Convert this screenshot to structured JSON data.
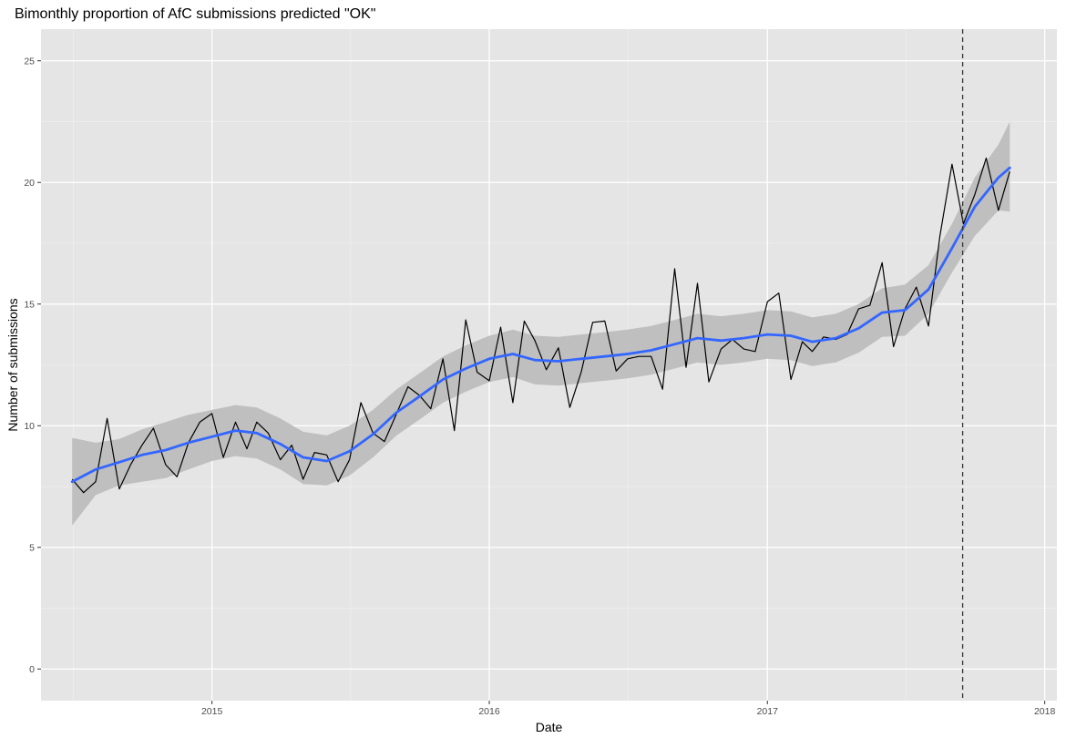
{
  "chart_data": {
    "type": "line",
    "title": "Bimonthly proportion of AfC submissions predicted \"OK\"",
    "xlabel": "Date",
    "ylabel": "Number of submissions",
    "xlim": [
      "2014-05-21",
      "2018-01-17"
    ],
    "ylim": [
      -1.3,
      26.3
    ],
    "x_ticks": [
      {
        "label": "2015",
        "value": "2015-01-01"
      },
      {
        "label": "2016",
        "value": "2016-01-01"
      },
      {
        "label": "2017",
        "value": "2017-01-01"
      },
      {
        "label": "2018",
        "value": "2018-01-01"
      }
    ],
    "y_ticks": [
      {
        "label": "0",
        "value": 0
      },
      {
        "label": "5",
        "value": 5
      },
      {
        "label": "10",
        "value": 10
      },
      {
        "label": "15",
        "value": 15
      },
      {
        "label": "20",
        "value": 20
      },
      {
        "label": "25",
        "value": 25
      }
    ],
    "grid": true,
    "background": "#e5e5e5",
    "colors": {
      "raw": "#000000",
      "smooth": "#3366ff",
      "ribbon": "#bdbdbd",
      "vline": "#333333"
    },
    "vline": {
      "x": "2017-09-15",
      "style": "dashed"
    },
    "series": [
      {
        "role": "raw",
        "points": [
          [
            "2014-07-01",
            7.8
          ],
          [
            "2014-07-16",
            7.25
          ],
          [
            "2014-08-01",
            7.7
          ],
          [
            "2014-08-16",
            10.3
          ],
          [
            "2014-09-01",
            7.4
          ],
          [
            "2014-09-16",
            8.4
          ],
          [
            "2014-10-01",
            9.2
          ],
          [
            "2014-10-16",
            9.9
          ],
          [
            "2014-11-01",
            8.4
          ],
          [
            "2014-11-16",
            7.9
          ],
          [
            "2014-12-01",
            9.3
          ],
          [
            "2014-12-16",
            10.15
          ],
          [
            "2015-01-01",
            10.5
          ],
          [
            "2015-01-16",
            8.7
          ],
          [
            "2015-02-01",
            10.15
          ],
          [
            "2015-02-16",
            9.05
          ],
          [
            "2015-03-01",
            10.15
          ],
          [
            "2015-03-16",
            9.7
          ],
          [
            "2015-04-01",
            8.6
          ],
          [
            "2015-04-16",
            9.2
          ],
          [
            "2015-05-01",
            7.8
          ],
          [
            "2015-05-16",
            8.9
          ],
          [
            "2015-06-01",
            8.8
          ],
          [
            "2015-06-16",
            7.7
          ],
          [
            "2015-07-01",
            8.6
          ],
          [
            "2015-07-16",
            10.95
          ],
          [
            "2015-08-01",
            9.7
          ],
          [
            "2015-08-16",
            9.35
          ],
          [
            "2015-09-01",
            10.5
          ],
          [
            "2015-09-16",
            11.6
          ],
          [
            "2015-10-01",
            11.25
          ],
          [
            "2015-10-16",
            10.7
          ],
          [
            "2015-11-01",
            12.75
          ],
          [
            "2015-11-16",
            9.8
          ],
          [
            "2015-12-01",
            14.35
          ],
          [
            "2015-12-16",
            12.2
          ],
          [
            "2016-01-01",
            11.85
          ],
          [
            "2016-01-16",
            14.05
          ],
          [
            "2016-02-01",
            10.95
          ],
          [
            "2016-02-16",
            14.3
          ],
          [
            "2016-03-01",
            13.5
          ],
          [
            "2016-03-16",
            12.3
          ],
          [
            "2016-04-01",
            13.2
          ],
          [
            "2016-04-16",
            10.75
          ],
          [
            "2016-05-01",
            12.2
          ],
          [
            "2016-05-16",
            14.25
          ],
          [
            "2016-06-01",
            14.3
          ],
          [
            "2016-06-16",
            12.25
          ],
          [
            "2016-07-01",
            12.75
          ],
          [
            "2016-07-16",
            12.85
          ],
          [
            "2016-08-01",
            12.85
          ],
          [
            "2016-08-16",
            11.5
          ],
          [
            "2016-09-01",
            16.45
          ],
          [
            "2016-09-16",
            12.4
          ],
          [
            "2016-10-01",
            15.85
          ],
          [
            "2016-10-16",
            11.8
          ],
          [
            "2016-11-01",
            13.15
          ],
          [
            "2016-11-16",
            13.55
          ],
          [
            "2016-12-01",
            13.15
          ],
          [
            "2016-12-16",
            13.05
          ],
          [
            "2017-01-01",
            15.1
          ],
          [
            "2017-01-16",
            15.45
          ],
          [
            "2017-02-01",
            11.9
          ],
          [
            "2017-02-16",
            13.45
          ],
          [
            "2017-03-01",
            13.05
          ],
          [
            "2017-03-16",
            13.65
          ],
          [
            "2017-04-01",
            13.55
          ],
          [
            "2017-04-16",
            13.75
          ],
          [
            "2017-05-01",
            14.8
          ],
          [
            "2017-05-16",
            14.95
          ],
          [
            "2017-06-01",
            16.7
          ],
          [
            "2017-06-16",
            13.25
          ],
          [
            "2017-07-01",
            14.8
          ],
          [
            "2017-07-16",
            15.7
          ],
          [
            "2017-08-01",
            14.1
          ],
          [
            "2017-08-16",
            17.8
          ],
          [
            "2017-09-01",
            20.75
          ],
          [
            "2017-09-16",
            18.3
          ],
          [
            "2017-10-01",
            19.5
          ],
          [
            "2017-10-16",
            21.0
          ],
          [
            "2017-11-01",
            18.85
          ],
          [
            "2017-11-16",
            20.45
          ]
        ]
      },
      {
        "role": "smooth",
        "points": [
          [
            "2014-07-01",
            7.7
          ],
          [
            "2014-08-01",
            8.2
          ],
          [
            "2014-09-01",
            8.5
          ],
          [
            "2014-10-01",
            8.8
          ],
          [
            "2014-11-01",
            9.0
          ],
          [
            "2014-12-01",
            9.3
          ],
          [
            "2015-01-01",
            9.55
          ],
          [
            "2015-02-01",
            9.8
          ],
          [
            "2015-03-01",
            9.7
          ],
          [
            "2015-04-01",
            9.25
          ],
          [
            "2015-05-01",
            8.7
          ],
          [
            "2015-06-01",
            8.55
          ],
          [
            "2015-07-01",
            8.95
          ],
          [
            "2015-08-01",
            9.65
          ],
          [
            "2015-09-01",
            10.55
          ],
          [
            "2015-10-01",
            11.2
          ],
          [
            "2015-11-01",
            11.9
          ],
          [
            "2015-12-01",
            12.35
          ],
          [
            "2016-01-01",
            12.75
          ],
          [
            "2016-02-01",
            12.95
          ],
          [
            "2016-03-01",
            12.7
          ],
          [
            "2016-04-01",
            12.65
          ],
          [
            "2016-05-01",
            12.75
          ],
          [
            "2016-06-01",
            12.85
          ],
          [
            "2016-07-01",
            12.95
          ],
          [
            "2016-08-01",
            13.1
          ],
          [
            "2016-09-01",
            13.35
          ],
          [
            "2016-10-01",
            13.6
          ],
          [
            "2016-11-01",
            13.5
          ],
          [
            "2016-12-01",
            13.6
          ],
          [
            "2017-01-01",
            13.75
          ],
          [
            "2017-02-01",
            13.7
          ],
          [
            "2017-03-01",
            13.45
          ],
          [
            "2017-04-01",
            13.6
          ],
          [
            "2017-05-01",
            14.0
          ],
          [
            "2017-06-01",
            14.65
          ],
          [
            "2017-07-01",
            14.75
          ],
          [
            "2017-08-01",
            15.6
          ],
          [
            "2017-09-01",
            17.3
          ],
          [
            "2017-10-01",
            19.0
          ],
          [
            "2017-11-01",
            20.2
          ],
          [
            "2017-11-16",
            20.6
          ]
        ]
      },
      {
        "role": "ribbon",
        "points": [
          [
            "2014-07-01",
            5.9,
            9.5
          ],
          [
            "2014-08-01",
            7.15,
            9.3
          ],
          [
            "2014-09-01",
            7.55,
            9.45
          ],
          [
            "2014-10-01",
            7.7,
            9.85
          ],
          [
            "2014-11-01",
            7.85,
            10.15
          ],
          [
            "2014-12-01",
            8.2,
            10.45
          ],
          [
            "2015-01-01",
            8.55,
            10.65
          ],
          [
            "2015-02-01",
            8.75,
            10.85
          ],
          [
            "2015-03-01",
            8.65,
            10.75
          ],
          [
            "2015-04-01",
            8.2,
            10.3
          ],
          [
            "2015-05-01",
            7.6,
            9.75
          ],
          [
            "2015-06-01",
            7.55,
            9.6
          ],
          [
            "2015-07-01",
            7.95,
            10.0
          ],
          [
            "2015-08-01",
            8.7,
            10.65
          ],
          [
            "2015-09-01",
            9.6,
            11.5
          ],
          [
            "2015-10-01",
            10.25,
            12.15
          ],
          [
            "2015-11-01",
            10.95,
            12.85
          ],
          [
            "2015-12-01",
            11.4,
            13.3
          ],
          [
            "2016-01-01",
            11.8,
            13.7
          ],
          [
            "2016-02-01",
            12.0,
            13.95
          ],
          [
            "2016-03-01",
            11.7,
            13.7
          ],
          [
            "2016-04-01",
            11.65,
            13.65
          ],
          [
            "2016-05-01",
            11.75,
            13.75
          ],
          [
            "2016-06-01",
            11.85,
            13.85
          ],
          [
            "2016-07-01",
            11.95,
            13.95
          ],
          [
            "2016-08-01",
            12.1,
            14.1
          ],
          [
            "2016-09-01",
            12.35,
            14.35
          ],
          [
            "2016-10-01",
            12.6,
            14.6
          ],
          [
            "2016-11-01",
            12.5,
            14.5
          ],
          [
            "2016-12-01",
            12.6,
            14.6
          ],
          [
            "2017-01-01",
            12.75,
            14.75
          ],
          [
            "2017-02-01",
            12.7,
            14.7
          ],
          [
            "2017-03-01",
            12.45,
            14.45
          ],
          [
            "2017-04-01",
            12.6,
            14.6
          ],
          [
            "2017-05-01",
            13.0,
            15.0
          ],
          [
            "2017-06-01",
            13.65,
            15.65
          ],
          [
            "2017-07-01",
            13.7,
            15.8
          ],
          [
            "2017-08-01",
            14.6,
            16.6
          ],
          [
            "2017-09-01",
            16.3,
            18.3
          ],
          [
            "2017-10-01",
            17.8,
            20.2
          ],
          [
            "2017-11-01",
            18.85,
            21.55
          ],
          [
            "2017-11-16",
            18.8,
            22.5
          ]
        ]
      }
    ]
  }
}
